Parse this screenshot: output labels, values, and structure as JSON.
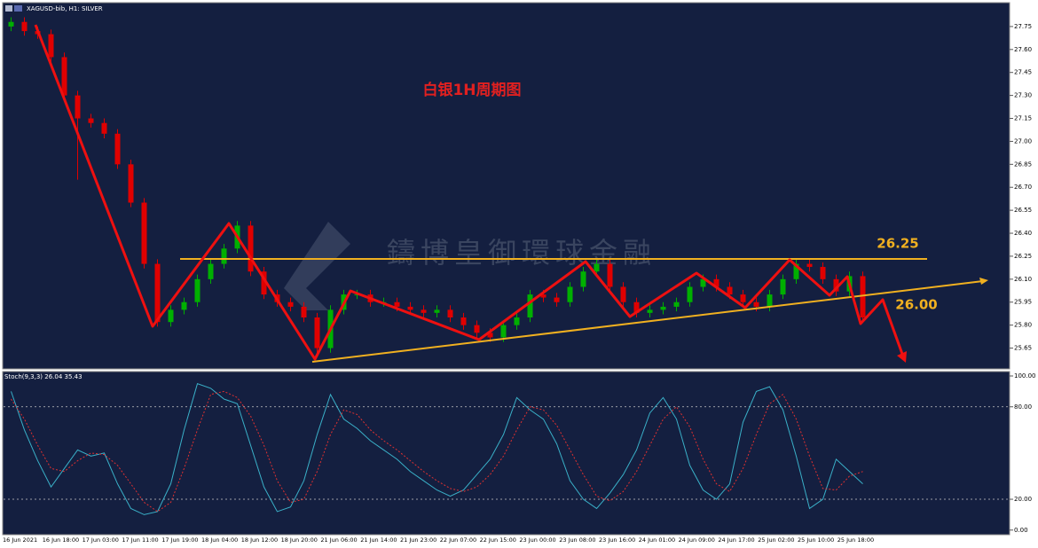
{
  "chart_data": [
    {
      "type": "candlestick",
      "header": "XAGUSD-bib, H1: SILVER",
      "title": "白银1H周期图",
      "watermark": "鑄博皇御環球金融",
      "annotations": [
        "26.25",
        "26.00"
      ],
      "up_color": "#00b000",
      "down_color": "#e00000",
      "open": [
        27.75,
        27.78,
        27.72,
        27.7,
        27.55,
        27.3,
        27.15,
        27.12,
        27.05,
        26.85,
        26.6,
        26.2,
        25.82,
        25.9,
        25.95,
        26.1,
        26.2,
        26.3,
        26.45,
        26.15,
        26.0,
        25.95,
        25.92,
        25.85,
        25.65,
        25.9,
        26.0,
        26.0,
        25.95,
        25.95,
        25.92,
        25.9,
        25.88,
        25.9,
        25.85,
        25.8,
        25.75,
        25.72,
        25.8,
        25.85,
        26.0,
        25.98,
        25.95,
        26.05,
        26.15,
        26.2,
        26.05,
        25.95,
        25.88,
        25.9,
        25.92,
        25.95,
        26.05,
        26.1,
        26.05,
        26.0,
        25.95,
        25.92,
        26.0,
        26.1,
        26.2,
        26.18,
        26.1,
        26.02,
        26.12
      ],
      "high": [
        27.81,
        27.81,
        27.75,
        27.73,
        27.58,
        27.33,
        27.18,
        27.15,
        27.08,
        26.88,
        26.63,
        26.23,
        25.93,
        25.98,
        26.13,
        26.23,
        26.33,
        26.48,
        26.48,
        26.18,
        26.03,
        25.98,
        25.95,
        25.88,
        25.93,
        26.03,
        26.03,
        26.03,
        25.98,
        25.98,
        25.95,
        25.93,
        25.93,
        25.93,
        25.88,
        25.83,
        25.78,
        25.83,
        25.88,
        26.03,
        26.03,
        26.01,
        26.08,
        26.18,
        26.23,
        26.23,
        26.08,
        25.98,
        25.93,
        25.95,
        25.98,
        26.08,
        26.13,
        26.13,
        26.08,
        26.03,
        25.98,
        26.03,
        26.13,
        26.23,
        26.23,
        26.21,
        26.13,
        26.15,
        26.15
      ],
      "low": [
        27.72,
        27.69,
        27.67,
        27.52,
        27.27,
        26.75,
        27.09,
        27.02,
        26.82,
        26.57,
        26.17,
        25.79,
        25.79,
        25.87,
        25.92,
        26.07,
        26.17,
        26.27,
        26.12,
        25.97,
        25.92,
        25.89,
        25.82,
        25.62,
        25.62,
        25.87,
        25.97,
        25.92,
        25.92,
        25.89,
        25.87,
        25.85,
        25.85,
        25.82,
        25.77,
        25.72,
        25.69,
        25.69,
        25.77,
        25.82,
        25.95,
        25.92,
        25.92,
        26.02,
        26.12,
        26.02,
        25.92,
        25.85,
        25.85,
        25.87,
        25.89,
        25.92,
        26.02,
        26.02,
        25.97,
        25.92,
        25.89,
        25.89,
        25.97,
        26.07,
        26.15,
        26.07,
        25.99,
        25.99,
        25.82
      ],
      "close": [
        27.78,
        27.72,
        27.7,
        27.55,
        27.3,
        27.15,
        27.12,
        27.05,
        26.85,
        26.6,
        26.2,
        25.82,
        25.9,
        25.95,
        26.1,
        26.2,
        26.3,
        26.45,
        26.15,
        26.0,
        25.95,
        25.92,
        25.85,
        25.65,
        25.9,
        26.0,
        26.0,
        25.95,
        25.95,
        25.92,
        25.9,
        25.88,
        25.9,
        25.85,
        25.8,
        25.75,
        25.72,
        25.8,
        25.85,
        26.0,
        25.98,
        25.95,
        26.05,
        26.15,
        26.2,
        26.05,
        25.95,
        25.88,
        25.9,
        25.92,
        25.95,
        26.05,
        26.1,
        26.05,
        26.0,
        25.95,
        25.92,
        26.0,
        26.1,
        26.2,
        26.18,
        26.1,
        26.02,
        26.12,
        25.85
      ],
      "ylim": [
        25.52,
        27.9
      ],
      "yticks": [
        {
          "value": 27.75,
          "label": "27.75"
        },
        {
          "value": 27.6,
          "label": "27.60"
        },
        {
          "value": 27.45,
          "label": "27.45"
        },
        {
          "value": 27.3,
          "label": "27.30"
        },
        {
          "value": 27.15,
          "label": "27.15"
        },
        {
          "value": 27.0,
          "label": "27.00"
        },
        {
          "value": 26.85,
          "label": "26.85"
        },
        {
          "value": 26.7,
          "label": "26.70"
        },
        {
          "value": 26.55,
          "label": "26.55"
        },
        {
          "value": 26.4,
          "label": "26.40"
        },
        {
          "value": 26.25,
          "label": "26.25"
        },
        {
          "value": 26.1,
          "label": "26.10"
        },
        {
          "value": 25.95,
          "label": "25.95"
        },
        {
          "value": 25.8,
          "label": "25.80"
        },
        {
          "value": 25.65,
          "label": "25.65"
        }
      ],
      "xtick_labels": [
        "16 Jun 2021",
        "16 Jun 18:00",
        "17 Jun 03:00",
        "17 Jun 11:00",
        "17 Jun 19:00",
        "18 Jun 04:00",
        "18 Jun 12:00",
        "18 Jun 20:00",
        "21 Jun 06:00",
        "21 Jun 14:00",
        "21 Jun 23:00",
        "22 Jun 07:00",
        "22 Jun 15:00",
        "23 Jun 00:00",
        "23 Jun 08:00",
        "23 Jun 16:00",
        "24 Jun 01:00",
        "24 Jun 09:00",
        "24 Jun 17:00",
        "25 Jun 02:00",
        "25 Jun 10:00",
        "25 Jun 18:00"
      ]
    },
    {
      "type": "line",
      "label": "Stoch(9,3,3) 26.04 35.43",
      "series": [
        {
          "color": "#3ab0c8",
          "values": [
            90,
            65,
            45,
            28,
            40,
            52,
            48,
            50,
            30,
            14,
            10,
            12,
            30,
            65,
            95,
            92,
            85,
            82,
            55,
            28,
            12,
            15,
            32,
            62,
            88,
            72,
            66,
            58,
            52,
            46,
            38,
            32,
            26,
            22,
            26,
            36,
            46,
            62,
            86,
            78,
            72,
            56,
            32,
            20,
            14,
            24,
            36,
            52,
            76,
            86,
            72,
            42,
            26,
            20,
            30,
            70,
            90,
            93,
            78,
            48,
            14,
            20,
            46,
            38,
            30
          ]
        },
        {
          "color": "#e03030",
          "dashed": true,
          "values": [
            85,
            72,
            55,
            40,
            38,
            45,
            50,
            49,
            42,
            30,
            18,
            12,
            18,
            40,
            65,
            88,
            90,
            86,
            74,
            55,
            32,
            18,
            20,
            38,
            62,
            78,
            75,
            65,
            58,
            52,
            45,
            38,
            32,
            27,
            25,
            28,
            36,
            48,
            65,
            80,
            78,
            68,
            52,
            36,
            22,
            19,
            25,
            38,
            55,
            72,
            80,
            67,
            46,
            30,
            25,
            40,
            62,
            82,
            88,
            72,
            48,
            27,
            26,
            35,
            38
          ]
        }
      ],
      "ylim": [
        -3,
        102.3
      ],
      "yticks": [
        {
          "value": 100,
          "label": "100.00"
        },
        {
          "value": 80,
          "label": "80.00"
        },
        {
          "value": 20,
          "label": "20.00"
        },
        {
          "value": 0,
          "label": "0.00"
        }
      ],
      "levels": [
        80,
        20
      ]
    }
  ]
}
